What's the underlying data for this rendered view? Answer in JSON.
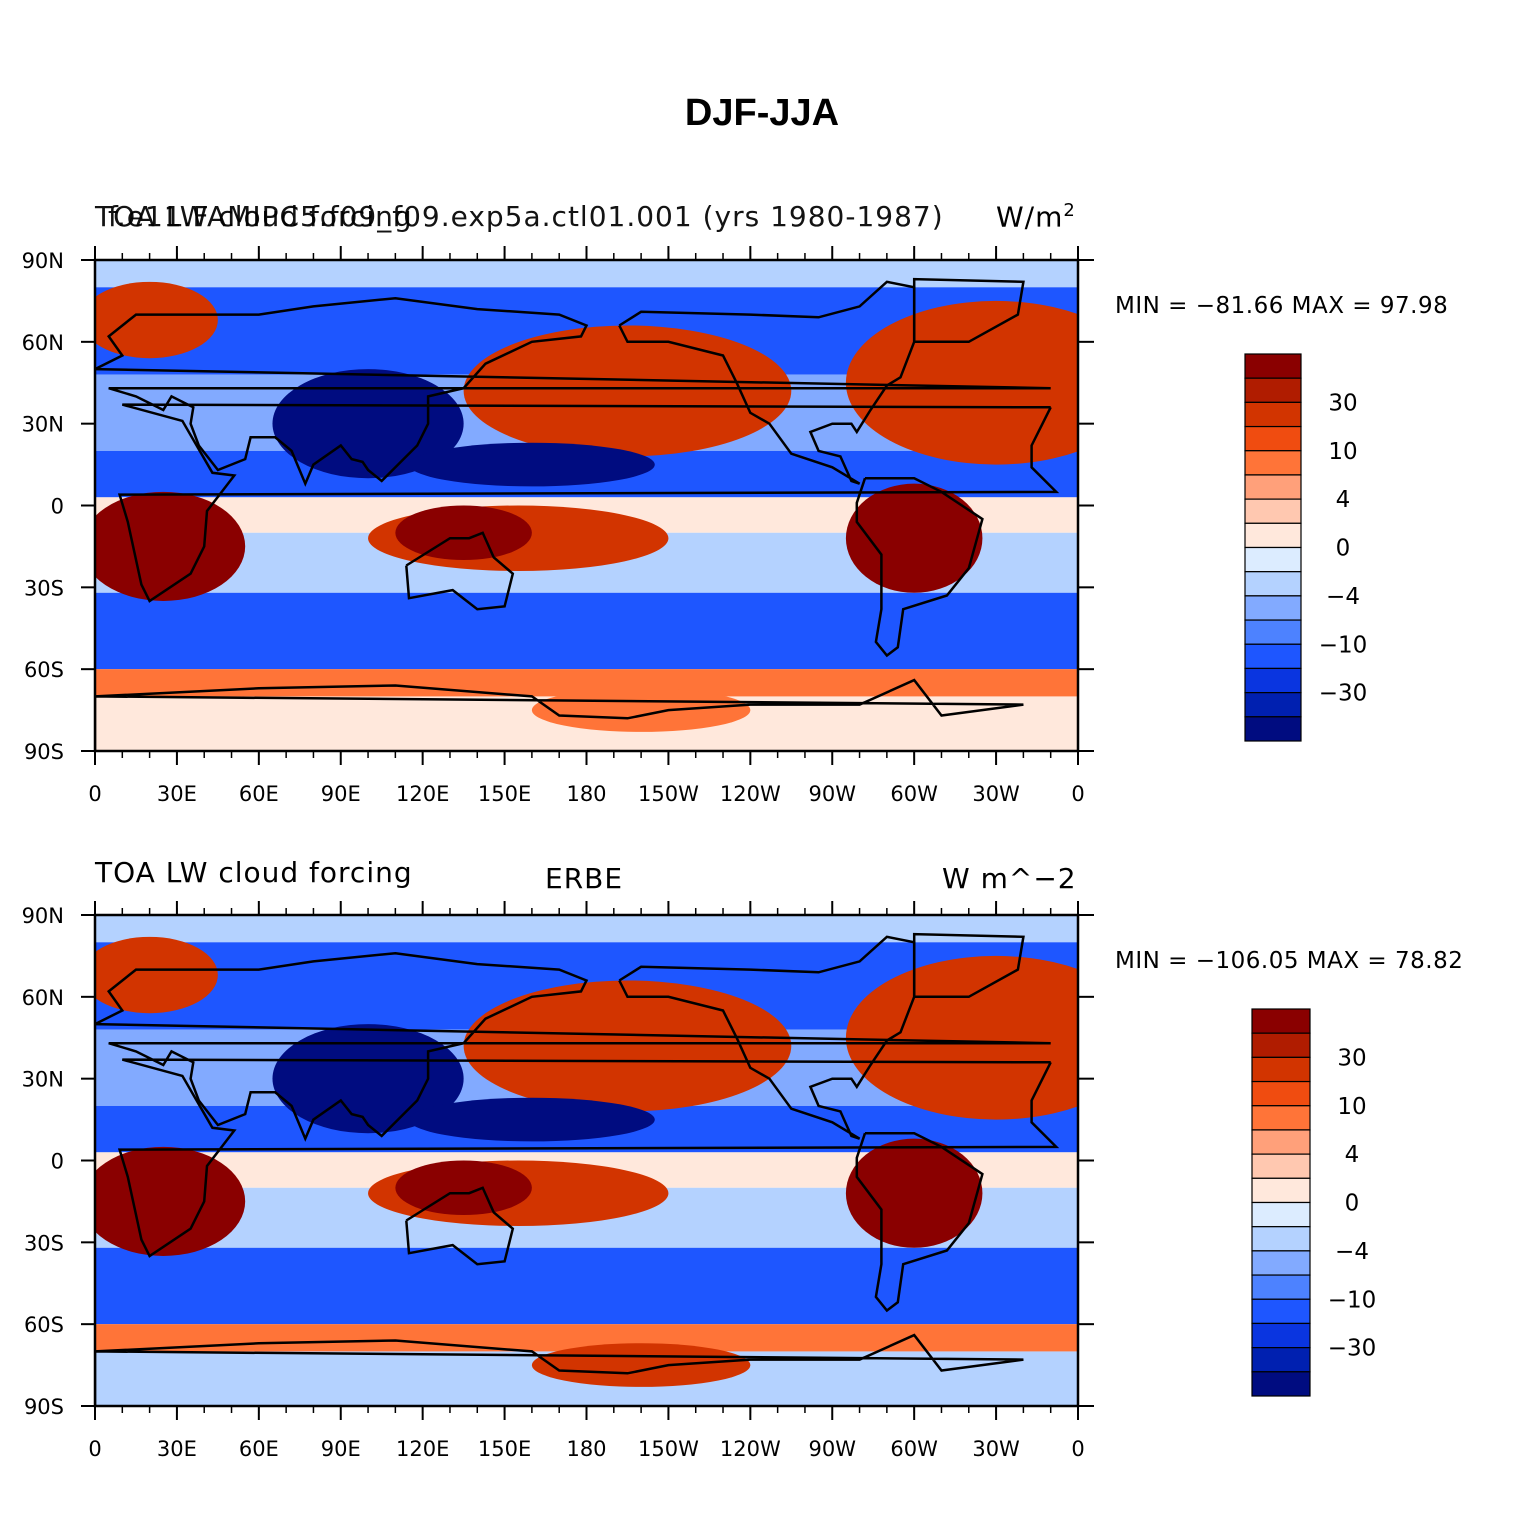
{
  "figure": {
    "title": "DJF-JJA"
  },
  "panels": [
    {
      "id": "model",
      "left_label": "TOA LW cloud forcing",
      "left_label_overlap": "f.e11.FAMIPC5.f09_f09.exp5a.ctl01.001 (yrs 1980-1987)",
      "right_label": "W/m",
      "right_label_sup": "2",
      "center_label": "",
      "stats": "MIN = −81.66 MAX =  97.98",
      "min": -81.66,
      "max": 97.98
    },
    {
      "id": "obs",
      "left_label": "TOA LW cloud forcing",
      "center_label": "ERBE",
      "right_label": "W m^−2",
      "stats": "MIN = −106.05 MAX =  78.82",
      "min": -106.05,
      "max": 78.82
    }
  ],
  "axes": {
    "lon_ticks": [
      "0",
      "30E",
      "60E",
      "90E",
      "120E",
      "150E",
      "180",
      "150W",
      "120W",
      "90W",
      "60W",
      "30W",
      "0"
    ],
    "lat_ticks": [
      "90N",
      "60N",
      "30N",
      "0",
      "30S",
      "60S",
      "90S"
    ]
  },
  "colorbar": {
    "levels_labels": [
      "30",
      "10",
      "4",
      "0",
      "−4",
      "−10",
      "−30"
    ],
    "colors": [
      "#8a0000",
      "#b01c00",
      "#d23400",
      "#f04c10",
      "#ff7438",
      "#ffa07a",
      "#ffc8b0",
      "#ffe8dc",
      "#dcecff",
      "#b4d2ff",
      "#82aaff",
      "#4d82ff",
      "#1e56ff",
      "#0a35e0",
      "#0020b0",
      "#000c80"
    ]
  },
  "palette": {
    "red_dark": "#8a0000",
    "red": "#d23400",
    "orange": "#ff7438",
    "pink": "#ffc8b0",
    "cream": "#ffe8dc",
    "blue_light": "#b4d2ff",
    "blue": "#1e56ff",
    "blue_dark": "#000c80"
  }
}
